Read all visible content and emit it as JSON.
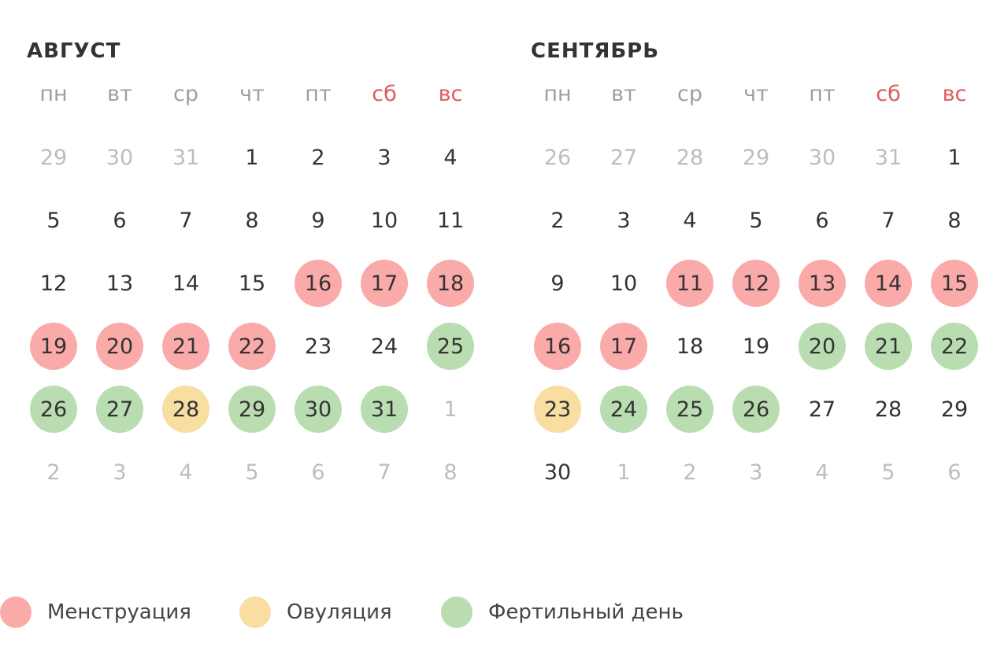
{
  "colors": {
    "menstruation": "#fbaaaa",
    "ovulation": "#f8dea0",
    "fertile": "#b9ddb1",
    "weekend": "#e05a5a",
    "other_month": "#bdbdbd",
    "weekday": "#9e9e9e"
  },
  "weekdays": [
    "пн",
    "вт",
    "ср",
    "чт",
    "пт",
    "сб",
    "вс"
  ],
  "months": [
    {
      "title": "АВГУСТ",
      "weeks": [
        [
          {
            "d": "29",
            "o": true
          },
          {
            "d": "30",
            "o": true
          },
          {
            "d": "31",
            "o": true
          },
          {
            "d": "1"
          },
          {
            "d": "2"
          },
          {
            "d": "3"
          },
          {
            "d": "4"
          }
        ],
        [
          {
            "d": "5"
          },
          {
            "d": "6"
          },
          {
            "d": "7"
          },
          {
            "d": "8"
          },
          {
            "d": "9"
          },
          {
            "d": "10"
          },
          {
            "d": "11"
          }
        ],
        [
          {
            "d": "12"
          },
          {
            "d": "13"
          },
          {
            "d": "14"
          },
          {
            "d": "15"
          },
          {
            "d": "16",
            "m": "menstruation"
          },
          {
            "d": "17",
            "m": "menstruation"
          },
          {
            "d": "18",
            "m": "menstruation"
          }
        ],
        [
          {
            "d": "19",
            "m": "menstruation"
          },
          {
            "d": "20",
            "m": "menstruation"
          },
          {
            "d": "21",
            "m": "menstruation"
          },
          {
            "d": "22",
            "m": "menstruation"
          },
          {
            "d": "23"
          },
          {
            "d": "24"
          },
          {
            "d": "25",
            "m": "fertile"
          }
        ],
        [
          {
            "d": "26",
            "m": "fertile"
          },
          {
            "d": "27",
            "m": "fertile"
          },
          {
            "d": "28",
            "m": "ovulation"
          },
          {
            "d": "29",
            "m": "fertile"
          },
          {
            "d": "30",
            "m": "fertile"
          },
          {
            "d": "31",
            "m": "fertile"
          },
          {
            "d": "1",
            "o": true
          }
        ],
        [
          {
            "d": "2",
            "o": true
          },
          {
            "d": "3",
            "o": true
          },
          {
            "d": "4",
            "o": true
          },
          {
            "d": "5",
            "o": true
          },
          {
            "d": "6",
            "o": true
          },
          {
            "d": "7",
            "o": true
          },
          {
            "d": "8",
            "o": true
          }
        ]
      ]
    },
    {
      "title": "СЕНТЯБРЬ",
      "weeks": [
        [
          {
            "d": "26",
            "o": true
          },
          {
            "d": "27",
            "o": true
          },
          {
            "d": "28",
            "o": true
          },
          {
            "d": "29",
            "o": true
          },
          {
            "d": "30",
            "o": true
          },
          {
            "d": "31",
            "o": true
          },
          {
            "d": "1"
          }
        ],
        [
          {
            "d": "2"
          },
          {
            "d": "3"
          },
          {
            "d": "4"
          },
          {
            "d": "5"
          },
          {
            "d": "6"
          },
          {
            "d": "7"
          },
          {
            "d": "8"
          }
        ],
        [
          {
            "d": "9"
          },
          {
            "d": "10"
          },
          {
            "d": "11",
            "m": "menstruation"
          },
          {
            "d": "12",
            "m": "menstruation"
          },
          {
            "d": "13",
            "m": "menstruation"
          },
          {
            "d": "14",
            "m": "menstruation"
          },
          {
            "d": "15",
            "m": "menstruation"
          }
        ],
        [
          {
            "d": "16",
            "m": "menstruation"
          },
          {
            "d": "17",
            "m": "menstruation"
          },
          {
            "d": "18"
          },
          {
            "d": "19"
          },
          {
            "d": "20",
            "m": "fertile"
          },
          {
            "d": "21",
            "m": "fertile"
          },
          {
            "d": "22",
            "m": "fertile"
          }
        ],
        [
          {
            "d": "23",
            "m": "ovulation"
          },
          {
            "d": "24",
            "m": "fertile"
          },
          {
            "d": "25",
            "m": "fertile"
          },
          {
            "d": "26",
            "m": "fertile"
          },
          {
            "d": "27"
          },
          {
            "d": "28"
          },
          {
            "d": "29"
          }
        ],
        [
          {
            "d": "30"
          },
          {
            "d": "1",
            "o": true
          },
          {
            "d": "2",
            "o": true
          },
          {
            "d": "3",
            "o": true
          },
          {
            "d": "4",
            "o": true
          },
          {
            "d": "5",
            "o": true
          },
          {
            "d": "6",
            "o": true
          }
        ]
      ]
    }
  ],
  "legend": [
    {
      "key": "menstruation",
      "label": "Менструация"
    },
    {
      "key": "ovulation",
      "label": "Овуляция"
    },
    {
      "key": "fertile",
      "label": "Фертильный день"
    }
  ]
}
